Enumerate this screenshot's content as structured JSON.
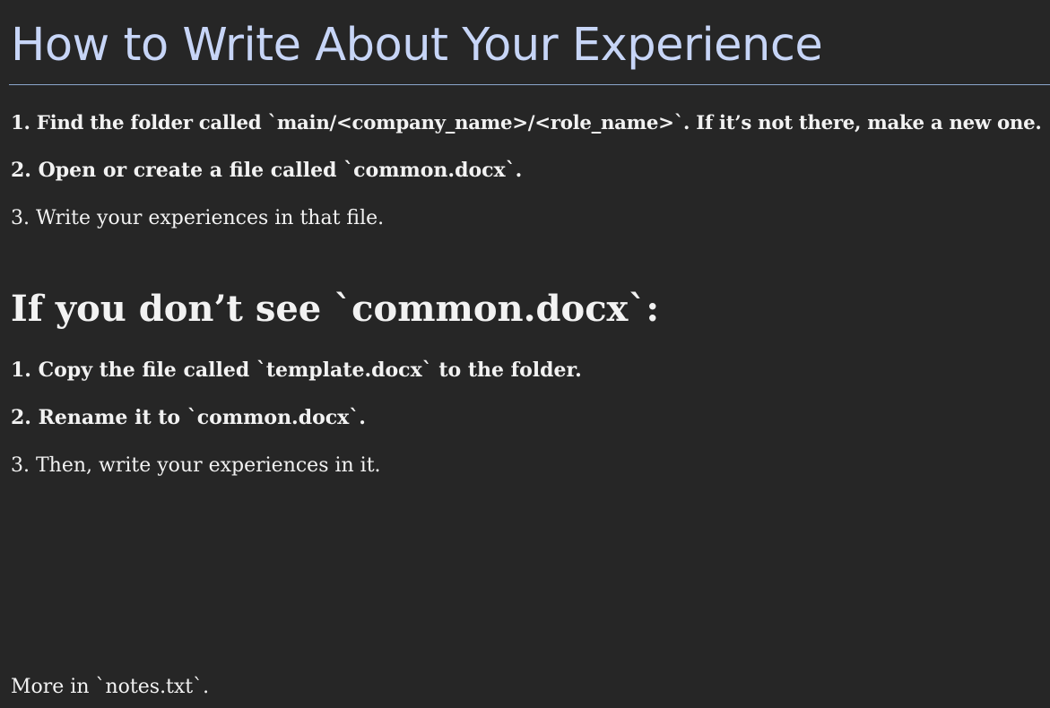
{
  "document": {
    "title": "How to Write About Your Experience",
    "steps": [
      "1. Find the folder called `main/<company_name>/<role_name>`. If it’s not there, make a new one.",
      "2. Open or create a file called `common.docx`.",
      "3. Write your experiences in that file."
    ],
    "section_heading": "If you don’t see `common.docx`:",
    "fallback_steps": [
      "1. Copy the file called `template.docx` to the folder.",
      "2. Rename it to `common.docx`.",
      "3. Then, write your experiences in it."
    ],
    "footer_note": "More in `notes.txt`."
  },
  "colors": {
    "background": "#262626",
    "title": "#c7d5f7",
    "rule": "#8ba6cc",
    "text": "#f2f2f2"
  }
}
